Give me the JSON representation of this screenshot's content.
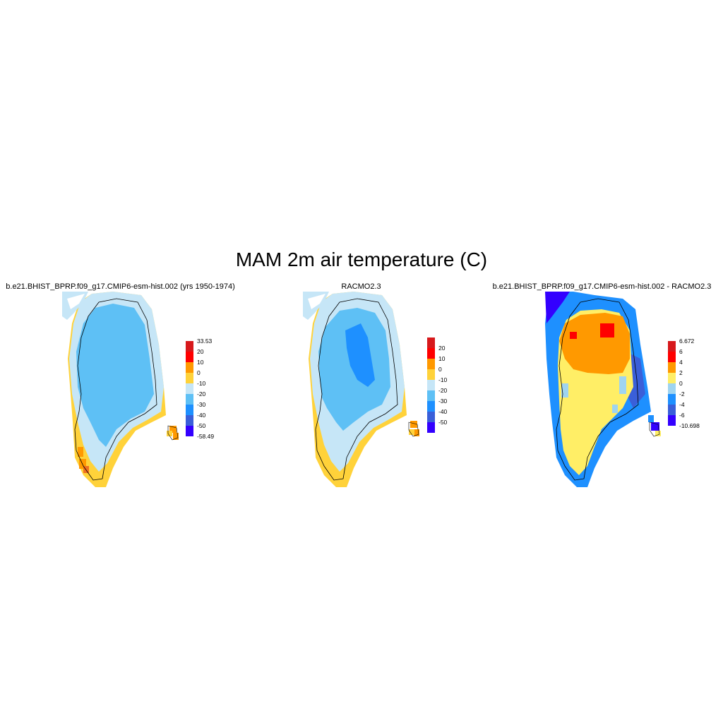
{
  "figure": {
    "title": "MAM 2m air temperature (C)"
  },
  "panels": [
    {
      "title": "b.e21.BHIST_BPRP.f09_g17.CMIP6-esm-hist.002 (yrs 1950-1974)",
      "colorbar": {
        "labels": [
          "33.53",
          "20",
          "10",
          "0",
          "-10",
          "-20",
          "-30",
          "-40",
          "-50",
          "-58.49"
        ],
        "colors": [
          "#d7191c",
          "#ff0000",
          "#ff9900",
          "#ffd23a",
          "#c6e6f7",
          "#5ec0f5",
          "#1e90ff",
          "#3a5fd9",
          "#3300ff"
        ]
      }
    },
    {
      "title": "RACMO2.3",
      "colorbar": {
        "labels": [
          "20",
          "10",
          "0",
          "-10",
          "-20",
          "-30",
          "-40",
          "-50"
        ],
        "colors": [
          "#d7191c",
          "#ff0000",
          "#ff9900",
          "#ffd23a",
          "#c6e6f7",
          "#5ec0f5",
          "#1e90ff",
          "#3a5fd9",
          "#3300ff"
        ]
      }
    },
    {
      "title": "b.e21.BHIST_BPRP.f09_g17.CMIP6-esm-hist.002 - RACMO2.3",
      "colorbar": {
        "labels": [
          "6.672",
          "6",
          "4",
          "2",
          "0",
          "-2",
          "-4",
          "-6",
          "-10.698"
        ],
        "colors": [
          "#d7191c",
          "#ff0000",
          "#ff9900",
          "#ffee66",
          "#9fd4f0",
          "#1e90ff",
          "#3a5fd9",
          "#3300ff"
        ]
      }
    }
  ]
}
